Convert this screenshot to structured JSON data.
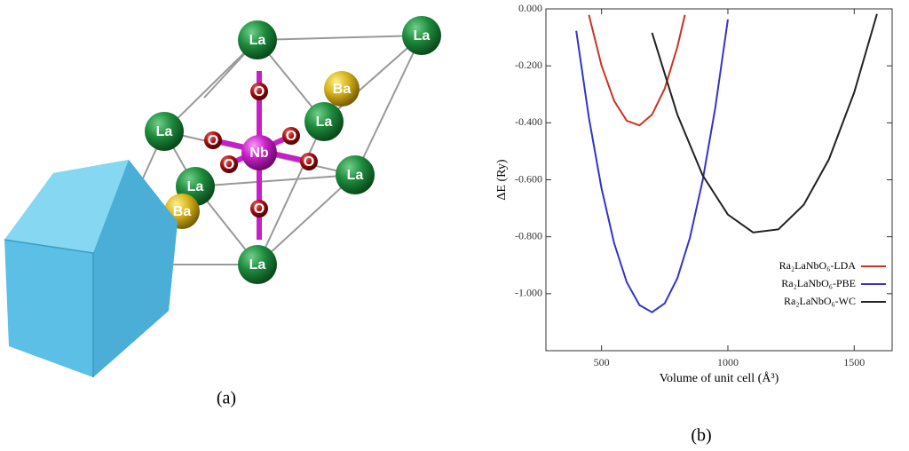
{
  "panel_a": {
    "caption": "(a)",
    "atoms": [
      {
        "label": "La"
      },
      {
        "label": "La"
      },
      {
        "label": "La"
      },
      {
        "label": "La"
      },
      {
        "label": "La"
      },
      {
        "label": "La"
      },
      {
        "label": "La"
      },
      {
        "label": "Ba"
      },
      {
        "label": "Ba"
      },
      {
        "label": "O"
      },
      {
        "label": "O"
      },
      {
        "label": "O"
      },
      {
        "label": "O"
      },
      {
        "label": "O"
      },
      {
        "label": "O"
      },
      {
        "label": "Nb"
      }
    ]
  },
  "chart_data": {
    "type": "line",
    "caption": "(b)",
    "xlabel": "Volume of unit cell (Å³)",
    "ylabel": "ΔE (Ry)",
    "xlim": [
      280,
      1650
    ],
    "ylim": [
      -1.2,
      0
    ],
    "xticks": [
      500,
      1000,
      1500
    ],
    "yticks": [
      {
        "value": 0,
        "label": "0.000"
      },
      {
        "value": -0.2,
        "label": "-0.200"
      },
      {
        "value": -0.4,
        "label": "-0.400"
      },
      {
        "value": -0.6,
        "label": "-0.600"
      },
      {
        "value": -0.8,
        "label": "-0.800"
      },
      {
        "value": -1.0,
        "label": "-1.000"
      }
    ],
    "legend": "lower right",
    "series": [
      {
        "name": "Ra₂LaNbO₆-LDA",
        "color": "#cc3322",
        "x": [
          450,
          500,
          550,
          600,
          650,
          700,
          750,
          800,
          830
        ],
        "values": [
          -0.021,
          -0.199,
          -0.323,
          -0.393,
          -0.409,
          -0.371,
          -0.28,
          -0.134,
          -0.021
        ]
      },
      {
        "name": "Ra₂LaNbO₆-PBE",
        "color": "#3333cc",
        "x": [
          400,
          450,
          500,
          550,
          600,
          650,
          700,
          750,
          800,
          850,
          900,
          950,
          1000
        ],
        "values": [
          -0.077,
          -0.382,
          -0.63,
          -0.823,
          -0.96,
          -1.04,
          -1.065,
          -1.034,
          -0.946,
          -0.803,
          -0.603,
          -0.348,
          -0.037
        ]
      },
      {
        "name": "Ra₂LaNbO₆-WC",
        "color": "#222222",
        "x": [
          700,
          800,
          900,
          1000,
          1100,
          1200,
          1300,
          1400,
          1500,
          1590
        ],
        "values": [
          -0.084,
          -0.371,
          -0.584,
          -0.722,
          -0.785,
          -0.774,
          -0.688,
          -0.528,
          -0.293,
          -0.018
        ]
      }
    ]
  }
}
